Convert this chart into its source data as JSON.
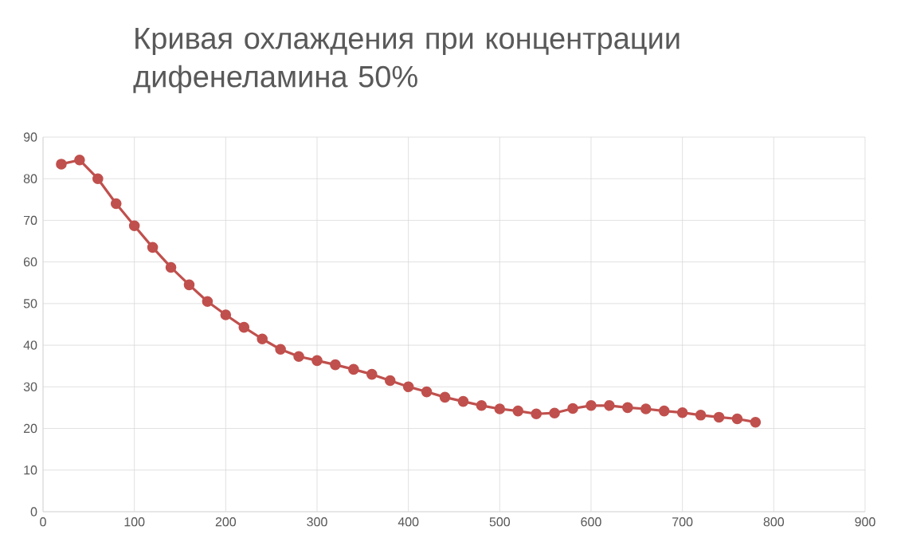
{
  "chart_data": {
    "type": "line",
    "title": "Кривая охлаждения при концентрации дифенеламина 50%",
    "x": [
      20,
      40,
      60,
      80,
      100,
      120,
      140,
      160,
      180,
      200,
      220,
      240,
      260,
      280,
      300,
      320,
      340,
      360,
      380,
      400,
      420,
      440,
      460,
      480,
      500,
      520,
      540,
      560,
      580,
      600,
      620,
      640,
      660,
      680,
      700,
      720,
      740,
      760,
      780
    ],
    "series": [
      {
        "color": "#c0504d",
        "values": [
          83.5,
          84.5,
          80,
          74,
          68.7,
          63.5,
          58.7,
          54.5,
          50.5,
          47.3,
          44.3,
          41.5,
          39,
          37.3,
          36.3,
          35.3,
          34.2,
          33,
          31.5,
          30,
          28.8,
          27.5,
          26.5,
          25.5,
          24.7,
          24.2,
          23.5,
          23.7,
          24.8,
          25.5,
          25.5,
          25,
          24.7,
          24.2,
          23.8,
          23.2,
          22.7,
          22.3,
          21.5
        ]
      }
    ],
    "xlim": [
      0,
      900
    ],
    "ylim": [
      0,
      90
    ],
    "xticks": [
      0,
      100,
      200,
      300,
      400,
      500,
      600,
      700,
      800,
      900
    ],
    "yticks": [
      0,
      10,
      20,
      30,
      40,
      50,
      60,
      70,
      80,
      90
    ],
    "grid": true,
    "marker": "circle",
    "line_style": "solid"
  }
}
